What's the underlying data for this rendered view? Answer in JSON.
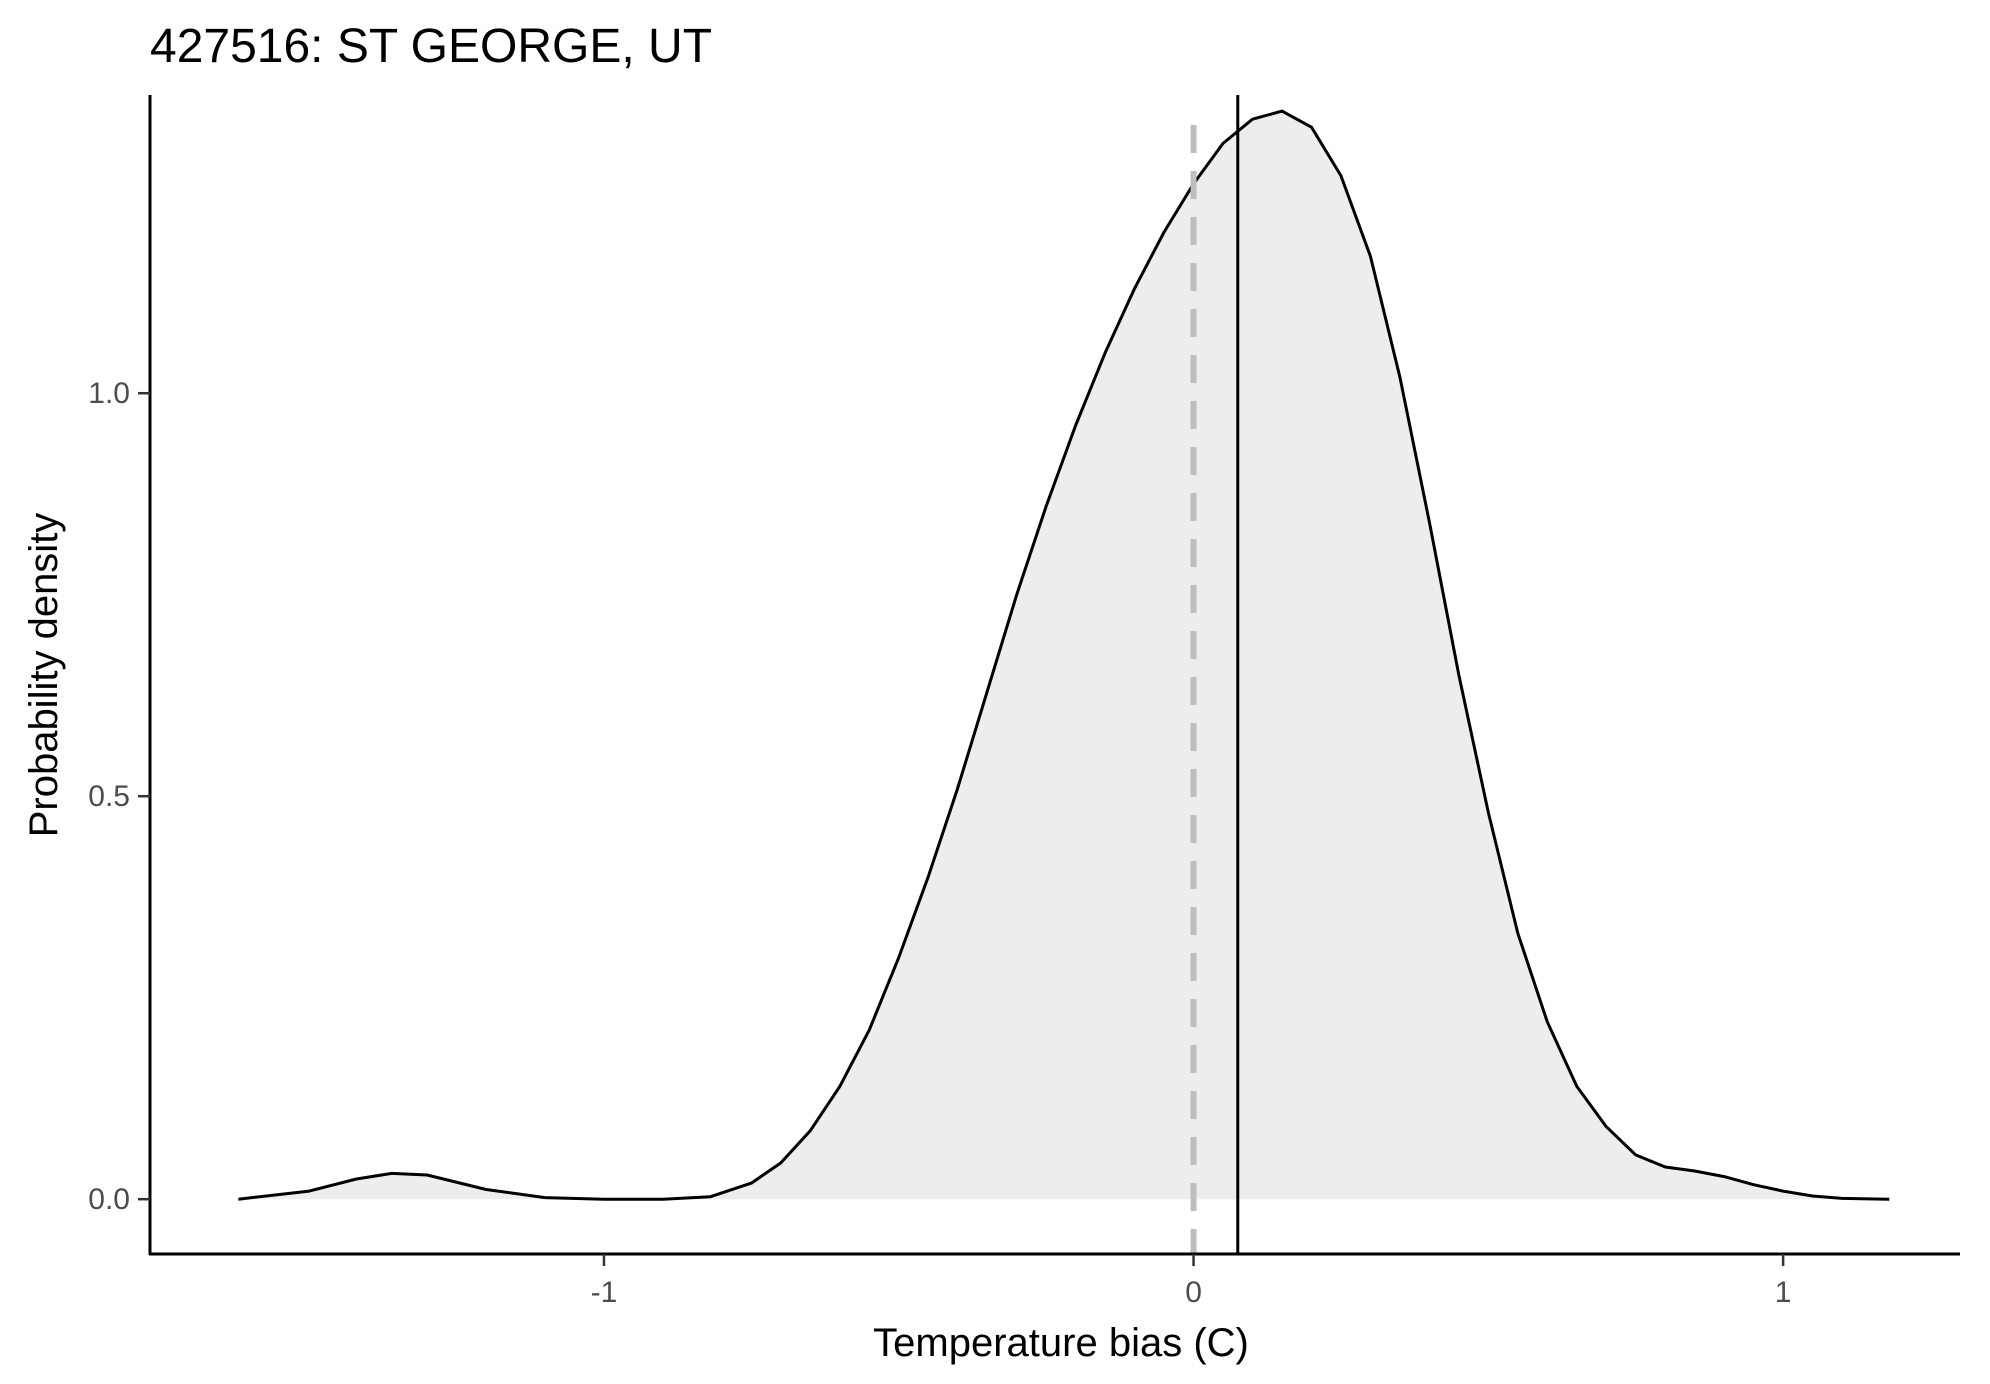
{
  "chart_data": {
    "type": "area",
    "title": "427516: ST GEORGE, UT",
    "xlabel": "Temperature bias (C)",
    "ylabel": "Probability density",
    "xlim": [
      -1.77,
      1.3
    ],
    "ylim": [
      -0.068,
      1.37
    ],
    "x_ticks": [
      {
        "value": -1,
        "label": "-1"
      },
      {
        "value": 0,
        "label": "0"
      },
      {
        "value": 1,
        "label": "1"
      }
    ],
    "y_ticks": [
      {
        "value": 0.0,
        "label": "0.0"
      },
      {
        "value": 0.5,
        "label": "0.5"
      },
      {
        "value": 1.0,
        "label": "1.0"
      }
    ],
    "grid": false,
    "legend": "none",
    "reference_lines": [
      {
        "name": "zero",
        "x": 0.0,
        "style": "dashed",
        "color": "#bebebe"
      },
      {
        "name": "mean",
        "x": 0.075,
        "style": "solid",
        "color": "#000000"
      }
    ],
    "series": [
      {
        "fill": "#eeeded",
        "line": "#000000",
        "x": [
          -1.62,
          -1.5,
          -1.42,
          -1.36,
          -1.3,
          -1.2,
          -1.1,
          -1.0,
          -0.9,
          -0.82,
          -0.75,
          -0.7,
          -0.65,
          -0.6,
          -0.55,
          -0.5,
          -0.45,
          -0.4,
          -0.35,
          -0.3,
          -0.25,
          -0.2,
          -0.15,
          -0.1,
          -0.05,
          0.0,
          0.05,
          0.1,
          0.15,
          0.2,
          0.25,
          0.3,
          0.35,
          0.4,
          0.45,
          0.5,
          0.55,
          0.6,
          0.65,
          0.7,
          0.75,
          0.8,
          0.85,
          0.9,
          0.95,
          1.0,
          1.05,
          1.1,
          1.18
        ],
        "y": [
          0.0,
          0.01,
          0.025,
          0.032,
          0.03,
          0.012,
          0.002,
          0.0,
          0.0,
          0.003,
          0.02,
          0.045,
          0.085,
          0.14,
          0.21,
          0.3,
          0.4,
          0.51,
          0.63,
          0.75,
          0.86,
          0.96,
          1.05,
          1.13,
          1.2,
          1.26,
          1.31,
          1.34,
          1.35,
          1.33,
          1.27,
          1.17,
          1.02,
          0.84,
          0.65,
          0.48,
          0.33,
          0.22,
          0.14,
          0.09,
          0.055,
          0.04,
          0.035,
          0.028,
          0.018,
          0.01,
          0.004,
          0.001,
          0.0
        ]
      }
    ]
  }
}
